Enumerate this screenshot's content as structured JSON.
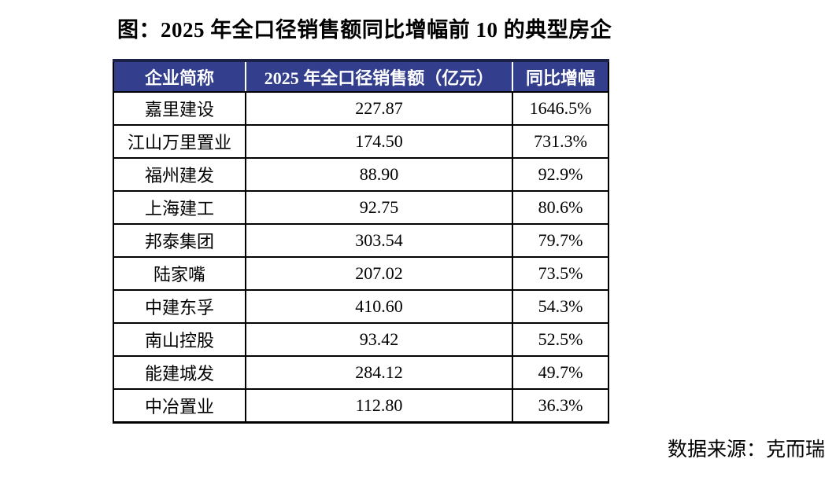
{
  "page": {
    "title": "图：2025 年全口径销售额同比增幅前 10 的典型房企",
    "source": "数据来源：克而瑞"
  },
  "colors": {
    "header_bg": "#333F8C",
    "header_text": "#FFFFFF",
    "border": "#000000",
    "background": "#FFFFFF"
  },
  "table": {
    "headers": [
      "企业简称",
      "2025 年全口径销售额（亿元）",
      "同比增幅"
    ],
    "rows": [
      {
        "name": "嘉里建设",
        "sales": "227.87",
        "growth": "1646.5%"
      },
      {
        "name": "江山万里置业",
        "sales": "174.50",
        "growth": "731.3%"
      },
      {
        "name": "福州建发",
        "sales": "88.90",
        "growth": "92.9%"
      },
      {
        "name": "上海建工",
        "sales": "92.75",
        "growth": "80.6%"
      },
      {
        "name": "邦泰集团",
        "sales": "303.54",
        "growth": "79.7%"
      },
      {
        "name": "陆家嘴",
        "sales": "207.02",
        "growth": "73.5%"
      },
      {
        "name": "中建东孚",
        "sales": "410.60",
        "growth": "54.3%"
      },
      {
        "name": "南山控股",
        "sales": "93.42",
        "growth": "52.5%"
      },
      {
        "name": "能建城发",
        "sales": "284.12",
        "growth": "49.7%"
      },
      {
        "name": "中冶置业",
        "sales": "112.80",
        "growth": "36.3%"
      }
    ]
  },
  "chart_data": {
    "type": "table",
    "title": "图：2025 年全口径销售额同比增幅前 10 的典型房企",
    "columns": [
      "企业简称",
      "2025 年全口径销售额（亿元）",
      "同比增幅"
    ],
    "rows": [
      [
        "嘉里建设",
        227.87,
        "1646.5%"
      ],
      [
        "江山万里置业",
        174.5,
        "731.3%"
      ],
      [
        "福州建发",
        88.9,
        "92.9%"
      ],
      [
        "上海建工",
        92.75,
        "80.6%"
      ],
      [
        "邦泰集团",
        303.54,
        "79.7%"
      ],
      [
        "陆家嘴",
        207.02,
        "73.5%"
      ],
      [
        "中建东孚",
        410.6,
        "54.3%"
      ],
      [
        "南山控股",
        93.42,
        "52.5%"
      ],
      [
        "能建城发",
        284.12,
        "49.7%"
      ],
      [
        "中冶置业",
        112.8,
        "36.3%"
      ]
    ],
    "source": "数据来源：克而瑞",
    "layout_hints": {
      "header_bg": "#333F8C",
      "header_text_color": "#FFFFFF",
      "grid": true,
      "sorted_by": "同比增幅 descending"
    }
  }
}
